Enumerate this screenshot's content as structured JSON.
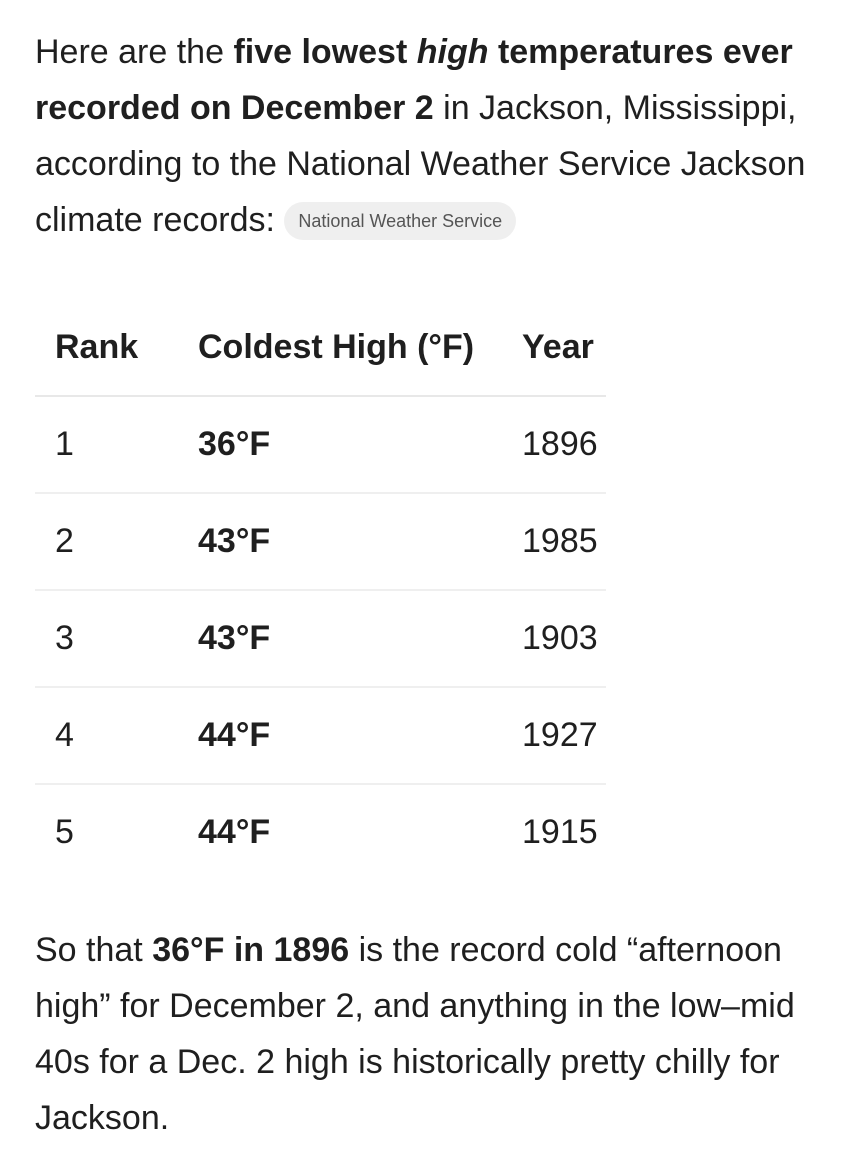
{
  "intro": {
    "runs": [
      {
        "text": "Here are the ",
        "style": "normal"
      },
      {
        "text": "five lowest ",
        "style": "bold"
      },
      {
        "text": "high",
        "style": "bold-italic"
      },
      {
        "text": " temperatures ever recorded on December 2",
        "style": "bold"
      },
      {
        "text": " in Jackson, Mississippi, according to the National Weather Service Jackson climate records: ",
        "style": "normal"
      }
    ],
    "source_chip": "National Weather Service"
  },
  "table": {
    "headers": [
      "Rank",
      "Coldest High (°F)",
      "Year"
    ],
    "rows": [
      [
        "1",
        "36°F",
        "1896"
      ],
      [
        "2",
        "43°F",
        "1985"
      ],
      [
        "3",
        "43°F",
        "1903"
      ],
      [
        "4",
        "44°F",
        "1927"
      ],
      [
        "5",
        "44°F",
        "1915"
      ]
    ]
  },
  "outro": {
    "runs": [
      {
        "text": "So that ",
        "style": "normal"
      },
      {
        "text": "36°F in 1896",
        "style": "bold"
      },
      {
        "text": " is the record cold “afternoon high” for December 2, and anything in the low–mid 40s for a Dec. 2 high is historically pretty chilly for Jackson.",
        "style": "normal"
      }
    ]
  }
}
